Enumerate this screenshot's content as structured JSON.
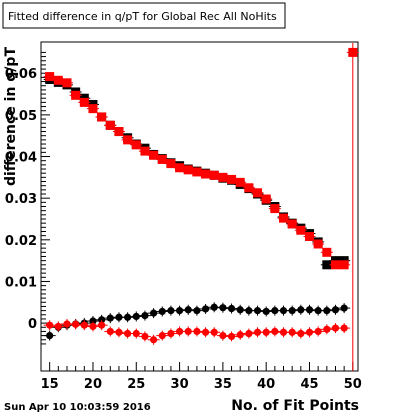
{
  "chart_data": {
    "type": "scatter",
    "title": "Fitted difference in q/pT  for Global Rec All NoHits",
    "xlabel": "No. of Fit Points",
    "ylabel": "difference in q/pT",
    "timestamp": "Sun Apr 10 10:03:59 2016",
    "xlim": [
      14,
      50.6
    ],
    "ylim": [
      -0.0115,
      0.0675
    ],
    "x_ticks": [
      {
        "v": 15,
        "label": "15"
      },
      {
        "v": 20,
        "label": "20"
      },
      {
        "v": 25,
        "label": "25"
      },
      {
        "v": 30,
        "label": "30"
      },
      {
        "v": 35,
        "label": "35"
      },
      {
        "v": 40,
        "label": "40"
      },
      {
        "v": 45,
        "label": "45"
      },
      {
        "v": 50,
        "label": "50"
      }
    ],
    "y_ticks": [
      {
        "v": 0,
        "label": "0"
      },
      {
        "v": 0.01,
        "label": "0.01"
      },
      {
        "v": 0.02,
        "label": "0.02"
      },
      {
        "v": 0.03,
        "label": "0.03"
      },
      {
        "v": 0.04,
        "label": "0.04"
      },
      {
        "v": 0.05,
        "label": "0.05"
      },
      {
        "v": 0.06,
        "label": "0.06"
      }
    ],
    "grid": false,
    "legend": "none",
    "series": [
      {
        "color": "#000000",
        "marker": "square",
        "x": [
          15,
          16,
          17,
          18,
          19,
          20,
          21,
          22,
          23,
          24,
          25,
          26,
          27,
          28,
          29,
          30,
          31,
          32,
          33,
          34,
          35,
          36,
          37,
          38,
          39,
          40,
          41,
          42,
          43,
          44,
          45,
          46,
          47,
          48,
          49
        ],
        "y": [
          0.0585,
          0.0578,
          0.0572,
          0.0555,
          0.054,
          0.0525,
          0.0495,
          0.0475,
          0.046,
          0.0445,
          0.043,
          0.042,
          0.0405,
          0.0395,
          0.0385,
          0.0378,
          0.037,
          0.0365,
          0.036,
          0.0355,
          0.0348,
          0.0343,
          0.0333,
          0.0323,
          0.031,
          0.0295,
          0.028,
          0.0255,
          0.024,
          0.0228,
          0.0215,
          0.0195,
          0.014,
          0.015,
          0.015
        ]
      },
      {
        "color": "#ff0000",
        "marker": "square",
        "x": [
          15,
          16,
          17,
          18,
          19,
          20,
          21,
          22,
          23,
          24,
          25,
          26,
          27,
          28,
          29,
          30,
          31,
          32,
          33,
          34,
          35,
          36,
          37,
          38,
          39,
          40,
          41,
          42,
          43,
          44,
          45,
          46,
          47,
          48,
          49,
          50
        ],
        "y": [
          0.0592,
          0.0583,
          0.0577,
          0.0547,
          0.053,
          0.0515,
          0.0495,
          0.0475,
          0.046,
          0.044,
          0.0428,
          0.0413,
          0.0403,
          0.0393,
          0.0383,
          0.0373,
          0.0368,
          0.0363,
          0.0358,
          0.0355,
          0.035,
          0.0345,
          0.0338,
          0.0325,
          0.0313,
          0.0298,
          0.0275,
          0.0252,
          0.0238,
          0.0223,
          0.0208,
          0.019,
          0.017,
          0.014,
          0.014,
          0.065
        ]
      },
      {
        "color": "#000000",
        "marker": "circle",
        "x": [
          15,
          16,
          17,
          18,
          19,
          20,
          21,
          22,
          23,
          24,
          25,
          26,
          27,
          28,
          29,
          30,
          31,
          32,
          33,
          34,
          35,
          36,
          37,
          38,
          39,
          40,
          41,
          42,
          43,
          44,
          45,
          46,
          47,
          48,
          49
        ],
        "y": [
          -0.003,
          -0.001,
          -0.0005,
          -0.0002,
          0.0,
          0.0005,
          0.0008,
          0.0012,
          0.0014,
          0.0014,
          0.0016,
          0.0018,
          0.0024,
          0.0028,
          0.003,
          0.003,
          0.0032,
          0.003,
          0.0034,
          0.0038,
          0.0037,
          0.0035,
          0.0032,
          0.003,
          0.003,
          0.0028,
          0.003,
          0.003,
          0.003,
          0.0032,
          0.0032,
          0.003,
          0.003,
          0.0032,
          0.0036
        ]
      },
      {
        "color": "#ff0000",
        "marker": "circle",
        "x": [
          15,
          16,
          17,
          18,
          19,
          20,
          21,
          22,
          23,
          24,
          25,
          26,
          27,
          28,
          29,
          30,
          31,
          32,
          33,
          34,
          35,
          36,
          37,
          38,
          39,
          40,
          41,
          42,
          43,
          44,
          45,
          46,
          47,
          48,
          49
        ],
        "y": [
          -0.0005,
          -0.0008,
          -0.0002,
          -0.0003,
          -0.0005,
          -0.0008,
          -0.0005,
          -0.002,
          -0.0022,
          -0.0025,
          -0.0025,
          -0.0032,
          -0.004,
          -0.003,
          -0.0025,
          -0.002,
          -0.002,
          -0.002,
          -0.0022,
          -0.0022,
          -0.003,
          -0.0032,
          -0.0028,
          -0.0025,
          -0.0022,
          -0.0022,
          -0.002,
          -0.0022,
          -0.0022,
          -0.0025,
          -0.0022,
          -0.002,
          -0.0015,
          -0.0012,
          -0.0012
        ]
      }
    ]
  }
}
